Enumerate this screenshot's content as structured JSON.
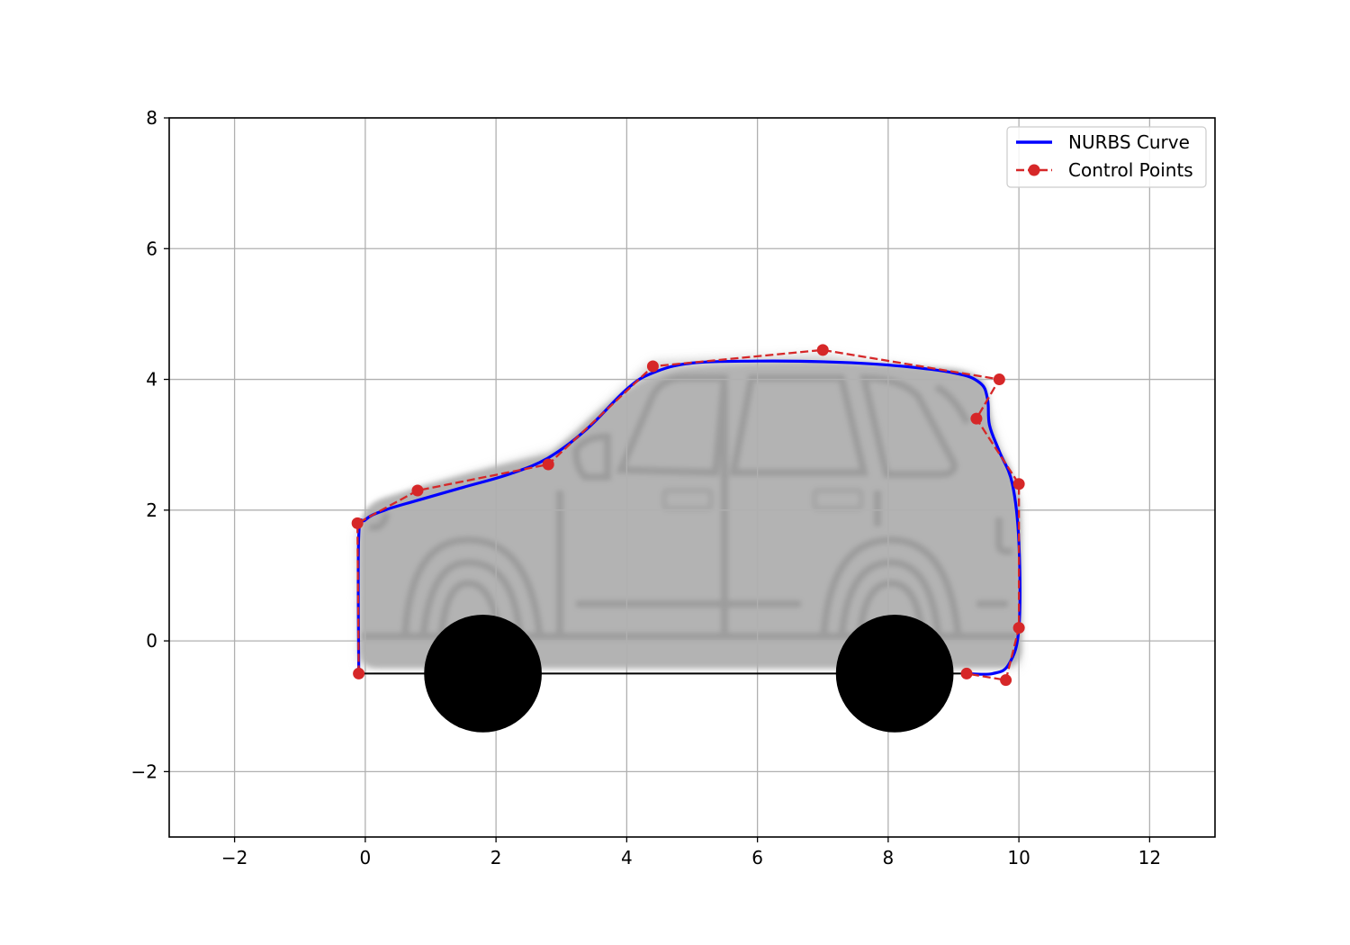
{
  "chart_data": {
    "type": "line",
    "title": "",
    "xlabel": "",
    "ylabel": "",
    "xlim": [
      -3,
      13
    ],
    "ylim": [
      -3,
      8
    ],
    "xticks": [
      -2,
      0,
      2,
      4,
      6,
      8,
      10,
      12
    ],
    "yticks": [
      -2,
      0,
      2,
      4,
      6,
      8
    ],
    "xtick_labels": [
      "−2",
      "0",
      "2",
      "4",
      "6",
      "8",
      "10",
      "12"
    ],
    "ytick_labels": [
      "−2",
      "0",
      "2",
      "4",
      "6",
      "8"
    ],
    "grid": true,
    "legend_position": "top-right",
    "background_image": "gray-suv-silhouette",
    "series": [
      {
        "name": "NURBS Curve",
        "style": "solid",
        "color": "#0000ff",
        "x": [
          -0.1,
          -0.1,
          0.0,
          0.3,
          0.8,
          1.5,
          2.2,
          2.8,
          3.4,
          4.0,
          4.4,
          5.0,
          6.0,
          7.0,
          8.0,
          9.0,
          9.4,
          9.52,
          9.55,
          9.7,
          9.9,
          10.0,
          10.0,
          9.85,
          9.6,
          9.2
        ],
        "y": [
          -0.45,
          1.6,
          1.85,
          2.0,
          2.15,
          2.35,
          2.55,
          2.8,
          3.25,
          3.85,
          4.1,
          4.25,
          4.28,
          4.27,
          4.22,
          4.1,
          3.95,
          3.7,
          3.3,
          2.9,
          2.4,
          1.5,
          0.2,
          -0.35,
          -0.5,
          -0.5
        ]
      },
      {
        "name": "Control Points",
        "style": "dashed",
        "marker": "circle",
        "color": "#d62728",
        "x": [
          -0.1,
          -0.12,
          0.8,
          2.8,
          4.4,
          7.0,
          9.7,
          9.35,
          10.0,
          10.0,
          9.8,
          9.2
        ],
        "y": [
          -0.5,
          1.8,
          2.3,
          2.7,
          4.2,
          4.45,
          4.0,
          3.4,
          2.4,
          0.2,
          -0.6,
          -0.5
        ]
      }
    ],
    "annotations": {
      "wheels": [
        {
          "x": 1.8,
          "y": -0.5,
          "r": 0.9,
          "color": "#000000"
        },
        {
          "x": 8.1,
          "y": -0.5,
          "r": 0.9,
          "color": "#000000"
        }
      ],
      "ground_line": {
        "x": [
          -0.1,
          9.2
        ],
        "y": [
          -0.5,
          -0.5
        ],
        "color": "#000000"
      }
    }
  }
}
